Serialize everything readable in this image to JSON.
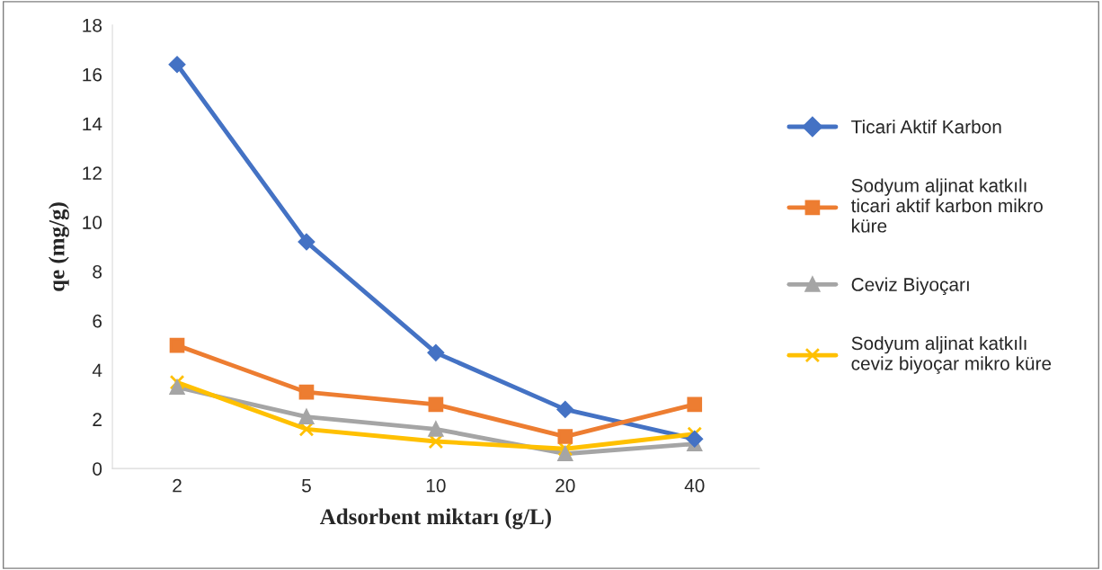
{
  "chart_data": {
    "type": "line",
    "xlabel": "Adsorbent miktarı (g/L)",
    "ylabel": "qe (mg/g)",
    "categories": [
      "2",
      "5",
      "10",
      "20",
      "40"
    ],
    "ylim": [
      0,
      18
    ],
    "yticks": [
      0,
      2,
      4,
      6,
      8,
      10,
      12,
      14,
      16,
      18
    ],
    "grid": false,
    "legend": "right",
    "line_style": "solid",
    "series": [
      {
        "name": "Ticari Aktif Karbon",
        "color": "#4472c4",
        "marker": "diamond",
        "values": [
          16.4,
          9.2,
          4.7,
          2.4,
          1.2
        ]
      },
      {
        "name": "Sodyum aljinat katkılı\nticari aktif karbon mikro\nküre",
        "color": "#ed7d31",
        "marker": "square",
        "values": [
          5.0,
          3.1,
          2.6,
          1.3,
          2.6
        ]
      },
      {
        "name": "Ceviz Biyoçarı",
        "color": "#a5a5a5",
        "marker": "triangle",
        "values": [
          3.3,
          2.1,
          1.6,
          0.6,
          1.0
        ]
      },
      {
        "name": "Sodyum aljinat katkılı\nceviz biyoçar mikro küre",
        "color": "#ffc000",
        "marker": "cross",
        "values": [
          3.5,
          1.6,
          1.1,
          0.8,
          1.4
        ]
      }
    ]
  }
}
